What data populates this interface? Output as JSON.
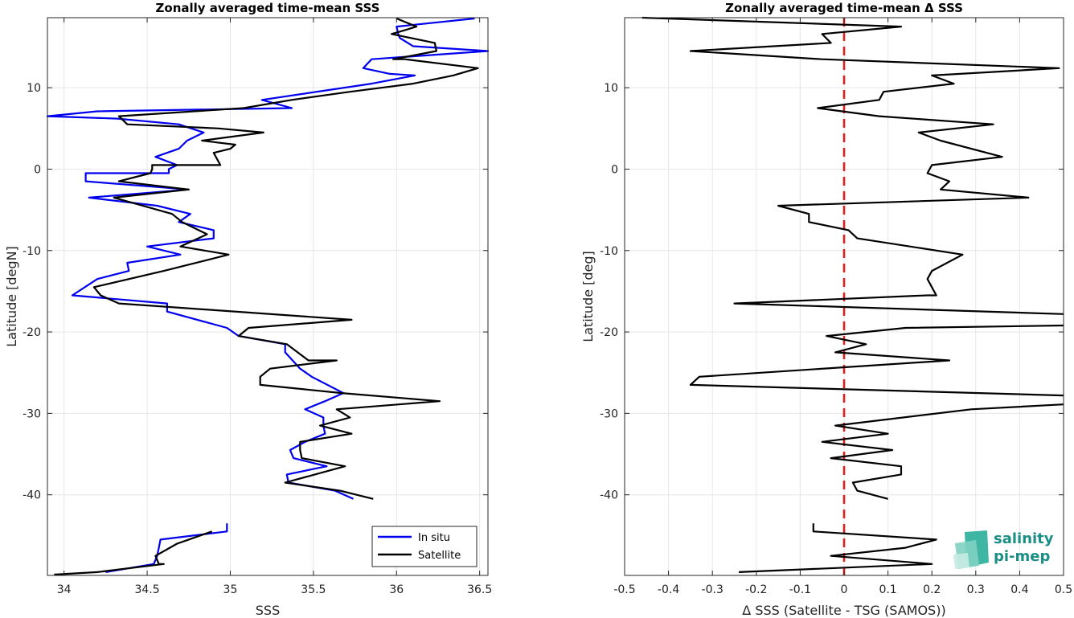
{
  "colors": {
    "in_situ": "#0000ee",
    "satellite": "#000000",
    "zero_line": "#e0201f",
    "grid": "#e6e6e6",
    "logo": "#1b8f86"
  },
  "logo": {
    "line1": "salinity",
    "line2": "pi-mep"
  },
  "chart_data": [
    {
      "type": "line",
      "title": "Zonally averaged time-mean SSS",
      "xlabel": "SSS",
      "ylabel": "Latitude [degN]",
      "xlim": [
        33.9,
        36.55
      ],
      "ylim": [
        -49.9,
        18.6
      ],
      "xticks": [
        34,
        34.5,
        35,
        35.5,
        36,
        36.5
      ],
      "xtick_labels": [
        "34",
        "34.5",
        "35",
        "35.5",
        "36",
        "36.5"
      ],
      "yticks": [
        -40,
        -30,
        -20,
        -10,
        0,
        10
      ],
      "ytick_labels": [
        "-40",
        "-30",
        "-20",
        "-10",
        "0",
        "10"
      ],
      "grid": true,
      "legend": {
        "placement": "bottom-right",
        "entries": [
          "In situ",
          "Satellite"
        ]
      },
      "series": [
        {
          "name": "In situ",
          "segments": [
            [
              [
                36.47,
                18.5
              ],
              [
                36.0,
                17.5
              ],
              [
                36.01,
                16.6
              ],
              [
                36.02,
                16.1
              ],
              [
                36.1,
                15.1
              ],
              [
                36.55,
                14.5
              ],
              [
                35.85,
                13.5
              ],
              [
                35.8,
                12.4
              ],
              [
                35.96,
                11.7
              ],
              [
                36.11,
                11.5
              ],
              [
                35.85,
                10.5
              ],
              [
                35.19,
                8.5
              ],
              [
                35.37,
                7.5
              ],
              [
                34.2,
                7.1
              ],
              [
                33.9,
                6.5
              ],
              [
                34.32,
                6.2
              ],
              [
                34.69,
                5.5
              ],
              [
                34.84,
                4.5
              ],
              [
                34.74,
                3.5
              ],
              [
                34.69,
                2.5
              ],
              [
                34.55,
                1.5
              ],
              [
                34.68,
                0.5
              ],
              [
                34.63,
                0
              ],
              [
                34.63,
                -0.5
              ],
              [
                34.13,
                -0.5
              ],
              [
                34.13,
                -1.5
              ],
              [
                34.75,
                -2.5
              ],
              [
                34.15,
                -3.5
              ],
              [
                34.56,
                -4.5
              ],
              [
                34.76,
                -5.5
              ],
              [
                34.69,
                -6.5
              ],
              [
                34.9,
                -7.5
              ],
              [
                34.9,
                -8.5
              ],
              [
                34.5,
                -9.5
              ],
              [
                34.7,
                -10.5
              ],
              [
                34.38,
                -11.5
              ],
              [
                34.39,
                -12.5
              ],
              [
                34.2,
                -13.5
              ],
              [
                34.05,
                -15.5
              ],
              [
                34.62,
                -16.5
              ],
              [
                34.62,
                -17.5
              ],
              [
                34.98,
                -19.5
              ],
              [
                35.05,
                -20.5
              ],
              [
                35.33,
                -21.5
              ],
              [
                35.33,
                -22.5
              ],
              [
                35.42,
                -24.5
              ],
              [
                35.49,
                -25.5
              ],
              [
                35.68,
                -27.5
              ],
              [
                35.57,
                -28.5
              ],
              [
                35.45,
                -29.5
              ],
              [
                35.56,
                -30.5
              ],
              [
                35.56,
                -31.5
              ],
              [
                35.57,
                -32.5
              ],
              [
                35.45,
                -33.5
              ],
              [
                35.36,
                -34.5
              ],
              [
                35.38,
                -35.5
              ],
              [
                35.58,
                -36.5
              ],
              [
                35.34,
                -37.5
              ],
              [
                35.35,
                -38.5
              ],
              [
                35.63,
                -39.5
              ],
              [
                35.74,
                -40.5
              ]
            ],
            [
              [
                34.98,
                -43.5
              ],
              [
                34.98,
                -44.5
              ],
              [
                34.58,
                -45.5
              ],
              [
                34.57,
                -46.5
              ],
              [
                34.56,
                -47.5
              ],
              [
                34.54,
                -48.5
              ],
              [
                34.25,
                -49.5
              ]
            ]
          ]
        },
        {
          "name": "Satellite",
          "segments": [
            [
              [
                36.0,
                18.5
              ],
              [
                36.12,
                17.5
              ],
              [
                36.04,
                17.0
              ],
              [
                35.97,
                16.6
              ],
              [
                36.23,
                15.5
              ],
              [
                36.24,
                14.5
              ],
              [
                35.98,
                13.5
              ],
              [
                36.05,
                13.5
              ],
              [
                36.49,
                12.4
              ],
              [
                36.34,
                11.5
              ],
              [
                36.1,
                10.5
              ],
              [
                35.72,
                9.5
              ],
              [
                35.37,
                8.5
              ],
              [
                35.08,
                7.5
              ],
              [
                34.33,
                6.5
              ],
              [
                34.38,
                5.5
              ],
              [
                34.93,
                5.0
              ],
              [
                35.2,
                4.5
              ],
              [
                34.83,
                3.5
              ],
              [
                35.03,
                3.0
              ],
              [
                35.0,
                2.5
              ],
              [
                34.9,
                2.0
              ],
              [
                34.94,
                0.5
              ],
              [
                34.53,
                0.5
              ],
              [
                34.53,
                0
              ],
              [
                34.52,
                -0.5
              ],
              [
                34.33,
                -1.5
              ],
              [
                34.75,
                -2.5
              ],
              [
                34.3,
                -3.5
              ],
              [
                34.65,
                -5.5
              ],
              [
                34.71,
                -6.5
              ],
              [
                34.86,
                -8.0
              ],
              [
                34.7,
                -9.5
              ],
              [
                34.99,
                -10.5
              ],
              [
                34.6,
                -12.5
              ],
              [
                34.18,
                -14.5
              ],
              [
                34.22,
                -15.5
              ],
              [
                34.33,
                -16.5
              ],
              [
                35.73,
                -18.5
              ],
              [
                35.11,
                -19.5
              ],
              [
                35.05,
                -20.5
              ],
              [
                35.34,
                -21.5
              ],
              [
                35.47,
                -23.5
              ],
              [
                35.64,
                -23.5
              ],
              [
                35.24,
                -24.5
              ],
              [
                35.18,
                -25.5
              ],
              [
                35.18,
                -26.5
              ],
              [
                35.67,
                -27.5
              ],
              [
                36.26,
                -28.5
              ],
              [
                35.64,
                -29.5
              ],
              [
                35.72,
                -30.5
              ],
              [
                35.54,
                -31.5
              ],
              [
                35.73,
                -32.5
              ],
              [
                35.42,
                -33.5
              ],
              [
                35.42,
                -34.5
              ],
              [
                35.43,
                -35.5
              ],
              [
                35.69,
                -36.5
              ],
              [
                35.33,
                -38.5
              ],
              [
                35.66,
                -39.5
              ],
              [
                35.86,
                -40.5
              ]
            ],
            [
              [
                34.89,
                -44.5
              ],
              [
                34.75,
                -45.5
              ],
              [
                34.68,
                -46.0
              ],
              [
                34.55,
                -47.5
              ],
              [
                34.57,
                -48.5
              ],
              [
                34.6,
                -48.5
              ],
              [
                34.2,
                -49.5
              ],
              [
                33.94,
                -49.8
              ]
            ]
          ]
        }
      ]
    },
    {
      "type": "line",
      "title": "Zonally averaged time-mean Δ SSS",
      "xlabel": "Δ SSS (Satellite - TSG (SAMOS))",
      "ylabel": "Latitude [deg]",
      "xlim": [
        -0.5,
        0.5
      ],
      "ylim": [
        -49.9,
        18.6
      ],
      "xticks": [
        -0.5,
        -0.4,
        -0.3,
        -0.2,
        -0.1,
        0,
        0.1,
        0.2,
        0.3,
        0.4,
        0.5
      ],
      "xtick_labels": [
        "-0.5",
        "-0.4",
        "-0.3",
        "-0.2",
        "-0.1",
        "0",
        "0.1",
        "0.2",
        "0.3",
        "0.4",
        "0.5"
      ],
      "yticks": [
        -40,
        -30,
        -20,
        -10,
        0,
        10
      ],
      "ytick_labels": [
        "-40",
        "-30",
        "-20",
        "-10",
        "0",
        "10"
      ],
      "grid": true,
      "zero_line": 0,
      "series": [
        {
          "name": "",
          "segments": [
            [
              [
                -0.46,
                18.6
              ],
              [
                0.13,
                17.5
              ],
              [
                -0.05,
                16.6
              ],
              [
                -0.03,
                15.5
              ],
              [
                -0.35,
                14.5
              ],
              [
                -0.05,
                13.5
              ],
              [
                0.49,
                12.4
              ],
              [
                0.2,
                11.5
              ],
              [
                0.25,
                10.5
              ],
              [
                0.09,
                9.5
              ],
              [
                0.08,
                8.5
              ],
              [
                -0.06,
                7.5
              ],
              [
                0.08,
                6.5
              ],
              [
                0.34,
                5.5
              ],
              [
                0.17,
                4.5
              ],
              [
                0.22,
                3.5
              ],
              [
                0.36,
                1.5
              ],
              [
                0.2,
                0.5
              ],
              [
                0.19,
                -0.5
              ],
              [
                0.24,
                -1.5
              ],
              [
                0.22,
                -2.5
              ],
              [
                0.42,
                -3.5
              ],
              [
                -0.15,
                -4.5
              ],
              [
                -0.08,
                -5.5
              ],
              [
                -0.08,
                -6.5
              ],
              [
                0.01,
                -7.5
              ],
              [
                0.03,
                -8.5
              ],
              [
                0.27,
                -10.5
              ],
              [
                0.2,
                -12.5
              ],
              [
                0.19,
                -13.5
              ],
              [
                0.21,
                -15.5
              ],
              [
                0.19,
                -15.5
              ],
              [
                -0.25,
                -16.5
              ],
              [
                0.5,
                -17.8
              ]
            ],
            [
              [
                0.5,
                -19.2
              ],
              [
                0.14,
                -19.5
              ],
              [
                -0.04,
                -20.5
              ],
              [
                0.05,
                -21.5
              ],
              [
                -0.02,
                -22.5
              ],
              [
                0.24,
                -23.5
              ],
              [
                -0.33,
                -25.5
              ],
              [
                -0.35,
                -26.5
              ],
              [
                0.5,
                -27.8
              ]
            ],
            [
              [
                0.5,
                -28.9
              ],
              [
                0.29,
                -29.5
              ],
              [
                -0.02,
                -31.5
              ],
              [
                0.1,
                -32.5
              ],
              [
                -0.05,
                -33.5
              ],
              [
                0.11,
                -34.5
              ],
              [
                -0.03,
                -35.5
              ],
              [
                0.13,
                -36.5
              ],
              [
                0.13,
                -37.5
              ],
              [
                0.02,
                -38.5
              ],
              [
                0.03,
                -39.5
              ],
              [
                0.1,
                -40.5
              ]
            ],
            [
              [
                -0.07,
                -43.5
              ],
              [
                -0.07,
                -44.5
              ],
              [
                0.21,
                -45.5
              ],
              [
                0.14,
                -46.5
              ],
              [
                -0.03,
                -47.5
              ],
              [
                0.2,
                -48.5
              ],
              [
                -0.24,
                -49.5
              ]
            ]
          ]
        }
      ]
    }
  ]
}
